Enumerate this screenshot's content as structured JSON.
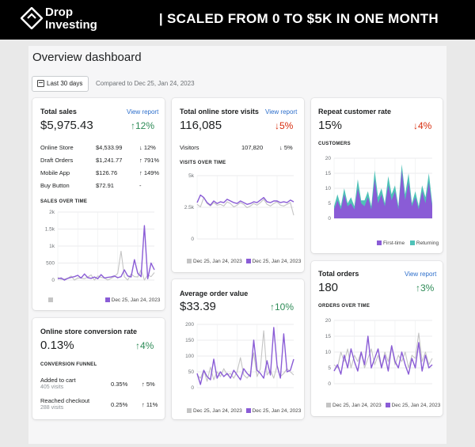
{
  "brand": {
    "line1": "Drop",
    "line2": "Investing"
  },
  "headline": "| SCALED FROM 0 TO $5K IN ONE MONTH",
  "page": {
    "title": "Overview dashboard",
    "date_button": "Last 30 days",
    "compare": "Compared to Dec 25, Jan 24, 2023"
  },
  "colors": {
    "accent": "#8a5cd6",
    "compare": "#c4c4c4",
    "teal": "#4fc2b8",
    "up": "#2e8b57",
    "down": "#d72c0d",
    "link": "#2c6ecb"
  },
  "total_sales": {
    "title": "Total sales",
    "link": "View report",
    "value": "$5,975.43",
    "change": "↑12%",
    "rows": [
      {
        "label": "Online Store",
        "value": "$4,533.99",
        "change": "↓ 12%",
        "dir": "down"
      },
      {
        "label": "Draft Orders",
        "value": "$1,241.77",
        "change": "↑ 791%",
        "dir": "up"
      },
      {
        "label": "Mobile App",
        "value": "$126.76",
        "change": "↑ 149%",
        "dir": "up"
      },
      {
        "label": "Buy Button",
        "value": "$72.91",
        "change": "-",
        "dir": "none"
      }
    ],
    "chart_title": "SALES OVER TIME",
    "legend": "Dec 25, Jan 24, 2023"
  },
  "visits": {
    "title": "Total online store visits",
    "link": "View report",
    "value": "116,085",
    "change": "↓5%",
    "row": {
      "label": "Visitors",
      "value": "107,820",
      "change": "↓ 5%"
    },
    "chart_title": "VISITS OVER TIME",
    "legend": "Dec 25, Jan 24, 2023"
  },
  "repeat": {
    "title": "Repeat customer rate",
    "value": "15%",
    "change": "↓4%",
    "chart_title": "CUSTOMERS",
    "legend_a": "First-time",
    "legend_b": "Returning"
  },
  "conversion": {
    "title": "Online store conversion rate",
    "value": "0.13%",
    "change": "↑4%",
    "funnel_title": "CONVERSION FUNNEL",
    "rows": [
      {
        "label": "Added to cart",
        "sub": "405 visits",
        "value": "0.35%",
        "change": "↑ 5%"
      },
      {
        "label": "Reached checkout",
        "sub": "288 visits",
        "value": "0.25%",
        "change": "↑ 11%"
      }
    ]
  },
  "aov": {
    "title": "Average order value",
    "value": "$33.39",
    "change": "↑10%",
    "legend": "Dec 25, Jan 24, 2023"
  },
  "orders": {
    "title": "Total orders",
    "link": "View report",
    "value": "180",
    "change": "↑3%",
    "chart_title": "ORDERS OVER TIME",
    "legend": "Dec 25, Jan 24, 2023"
  },
  "chart_data": [
    {
      "type": "line",
      "title": "SALES OVER TIME",
      "ylim": [
        0,
        2000
      ],
      "yticks": [
        "0",
        "500",
        "1k",
        "1.5k",
        "2k"
      ],
      "series": [
        {
          "name": "Dec 25, Jan 24, 2023",
          "values": [
            80,
            20,
            30,
            50,
            120,
            0,
            60,
            60,
            40,
            90,
            150,
            0,
            120,
            80,
            60,
            0,
            50,
            100,
            200,
            850,
            100,
            0,
            180,
            100,
            90,
            300,
            0,
            150,
            100,
            220
          ]
        },
        {
          "values": [
            40,
            60,
            0,
            50,
            80,
            100,
            140,
            60,
            180,
            70,
            50,
            90,
            40,
            160,
            60,
            80,
            90,
            120,
            70,
            100,
            300,
            120,
            90,
            600,
            200,
            100,
            1600,
            40,
            500,
            300
          ]
        }
      ]
    },
    {
      "type": "line",
      "title": "VISITS OVER TIME",
      "ylim": [
        0,
        7500
      ],
      "yticks": [
        "0",
        "2.5k",
        "5k"
      ],
      "series": [
        {
          "name": "Dec 25, Jan 24, 2023",
          "values": [
            4100,
            3800,
            4900,
            4200,
            3900,
            4300,
            4000,
            4100,
            3900,
            4400,
            4200,
            3800,
            4000,
            4300,
            4100,
            3700,
            3900,
            4200,
            4000,
            4300,
            4700,
            4100,
            3900,
            4200,
            4400,
            4000,
            3900,
            4100,
            4300,
            2800
          ]
        },
        {
          "values": [
            4300,
            5200,
            4900,
            4300,
            4000,
            4500,
            4200,
            4400,
            4300,
            4700,
            4500,
            4300,
            4200,
            4500,
            4300,
            4100,
            4200,
            4400,
            4300,
            4600,
            4900,
            4400,
            4300,
            4500,
            4500,
            4300,
            4400,
            4300,
            4600,
            4400
          ]
        }
      ]
    },
    {
      "type": "area",
      "title": "CUSTOMERS",
      "ylim": [
        0,
        20
      ],
      "yticks": [
        "0",
        "5",
        "10",
        "15",
        "20"
      ],
      "series": [
        {
          "name": "First-time",
          "values": [
            3,
            6,
            3,
            8,
            4,
            5,
            3,
            10,
            5,
            4,
            7,
            3,
            13,
            5,
            8,
            4,
            11,
            6,
            9,
            3,
            16,
            6,
            12,
            4,
            7,
            3,
            9,
            5,
            12,
            4
          ]
        },
        {
          "name": "Returning",
          "values": [
            1,
            2,
            1,
            2,
            1,
            2,
            1,
            3,
            1,
            2,
            2,
            1,
            3,
            2,
            2,
            1,
            3,
            2,
            2,
            1,
            2,
            2,
            3,
            1,
            2,
            1,
            2,
            2,
            3,
            1
          ]
        }
      ]
    },
    {
      "type": "line",
      "title": "Average order value",
      "ylim": [
        0,
        200
      ],
      "yticks": [
        "0",
        "50",
        "100",
        "150",
        "200"
      ],
      "series": [
        {
          "name": "Dec 25, Jan 24, 2023",
          "values": [
            40,
            30,
            55,
            20,
            65,
            25,
            50,
            35,
            60,
            40,
            45,
            30,
            50,
            95,
            40,
            30,
            45,
            110,
            35,
            60,
            180,
            40,
            55,
            30,
            70,
            35,
            45,
            60,
            50,
            40
          ]
        },
        {
          "values": [
            45,
            10,
            55,
            35,
            25,
            90,
            30,
            50,
            35,
            45,
            30,
            55,
            40,
            25,
            60,
            45,
            35,
            150,
            55,
            45,
            30,
            85,
            40,
            190,
            70,
            30,
            170,
            50,
            55,
            90
          ]
        }
      ]
    },
    {
      "type": "line",
      "title": "ORDERS OVER TIME",
      "ylim": [
        0,
        20
      ],
      "yticks": [
        "0",
        "5",
        "10",
        "15",
        "20"
      ],
      "series": [
        {
          "name": "Dec 25, Jan 24, 2023",
          "values": [
            6,
            5,
            10,
            7,
            11,
            5,
            9,
            7,
            10,
            5,
            8,
            11,
            6,
            9,
            5,
            10,
            7,
            12,
            6,
            9,
            7,
            10,
            5,
            9,
            8,
            16,
            7,
            10,
            6,
            8
          ]
        },
        {
          "values": [
            4,
            6,
            3,
            9,
            5,
            11,
            7,
            4,
            10,
            6,
            15,
            5,
            8,
            11,
            5,
            9,
            4,
            12,
            7,
            5,
            10,
            6,
            3,
            8,
            5,
            13,
            4,
            9,
            5,
            6
          ]
        }
      ]
    }
  ]
}
